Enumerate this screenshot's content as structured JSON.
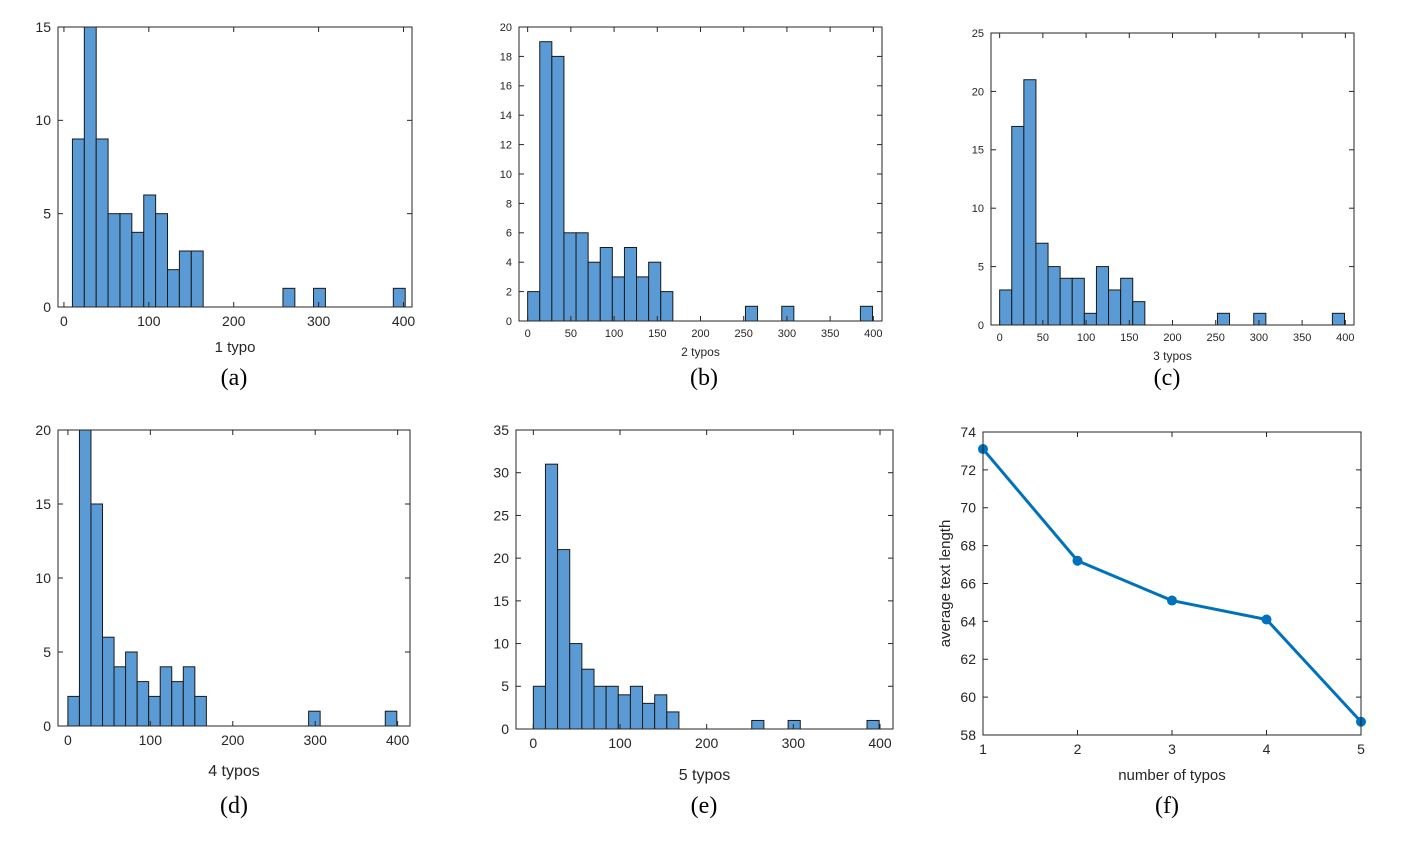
{
  "colors": {
    "bar_fill": "#5b9bd5",
    "line": "#0072bd",
    "axis": "#262626"
  },
  "chart_data": [
    {
      "id": "a",
      "type": "bar",
      "panel_label": "(a)",
      "title": "",
      "xlabel": "1 typo",
      "ylabel": "",
      "xlim": [
        -7,
        410
      ],
      "ylim": [
        0,
        15
      ],
      "xticks": [
        0,
        100,
        200,
        300,
        400
      ],
      "yticks": [
        0,
        5,
        10,
        15
      ],
      "bins": [
        {
          "x0": 10,
          "x1": 24,
          "y": 9
        },
        {
          "x0": 24,
          "x1": 38,
          "y": 15
        },
        {
          "x0": 38,
          "x1": 52,
          "y": 9
        },
        {
          "x0": 52,
          "x1": 66,
          "y": 5
        },
        {
          "x0": 66,
          "x1": 80,
          "y": 5
        },
        {
          "x0": 80,
          "x1": 94,
          "y": 4
        },
        {
          "x0": 94,
          "x1": 108,
          "y": 6
        },
        {
          "x0": 108,
          "x1": 122,
          "y": 5
        },
        {
          "x0": 122,
          "x1": 136,
          "y": 2
        },
        {
          "x0": 136,
          "x1": 150,
          "y": 3
        },
        {
          "x0": 150,
          "x1": 164,
          "y": 3
        },
        {
          "x0": 258,
          "x1": 272,
          "y": 1
        },
        {
          "x0": 294,
          "x1": 308,
          "y": 1
        },
        {
          "x0": 388,
          "x1": 402,
          "y": 1
        }
      ]
    },
    {
      "id": "b",
      "type": "bar",
      "panel_label": "(b)",
      "title": "",
      "xlabel": "2 typos",
      "ylabel": "",
      "xlim": [
        -10,
        410
      ],
      "ylim": [
        0,
        20
      ],
      "xticks": [
        0,
        50,
        100,
        150,
        200,
        250,
        300,
        350,
        400
      ],
      "yticks": [
        0,
        2,
        4,
        6,
        8,
        10,
        12,
        14,
        16,
        18,
        20
      ],
      "bins": [
        {
          "x0": 0,
          "x1": 14,
          "y": 2
        },
        {
          "x0": 14,
          "x1": 28,
          "y": 19
        },
        {
          "x0": 28,
          "x1": 42,
          "y": 18
        },
        {
          "x0": 42,
          "x1": 56,
          "y": 6
        },
        {
          "x0": 56,
          "x1": 70,
          "y": 6
        },
        {
          "x0": 70,
          "x1": 84,
          "y": 4
        },
        {
          "x0": 84,
          "x1": 98,
          "y": 5
        },
        {
          "x0": 98,
          "x1": 112,
          "y": 3
        },
        {
          "x0": 112,
          "x1": 126,
          "y": 5
        },
        {
          "x0": 126,
          "x1": 140,
          "y": 3
        },
        {
          "x0": 140,
          "x1": 154,
          "y": 4
        },
        {
          "x0": 154,
          "x1": 168,
          "y": 2
        },
        {
          "x0": 252,
          "x1": 266,
          "y": 1
        },
        {
          "x0": 294,
          "x1": 308,
          "y": 1
        },
        {
          "x0": 385,
          "x1": 399,
          "y": 1
        }
      ]
    },
    {
      "id": "c",
      "type": "bar",
      "panel_label": "(c)",
      "title": "",
      "xlabel": "3 typos",
      "ylabel": "",
      "xlim": [
        -10,
        410
      ],
      "ylim": [
        0,
        25
      ],
      "xticks": [
        0,
        50,
        100,
        150,
        200,
        250,
        300,
        350,
        400
      ],
      "yticks": [
        0,
        5,
        10,
        15,
        20,
        25
      ],
      "bins": [
        {
          "x0": 0,
          "x1": 14,
          "y": 3
        },
        {
          "x0": 14,
          "x1": 28,
          "y": 17
        },
        {
          "x0": 28,
          "x1": 42,
          "y": 21
        },
        {
          "x0": 42,
          "x1": 56,
          "y": 7
        },
        {
          "x0": 56,
          "x1": 70,
          "y": 5
        },
        {
          "x0": 70,
          "x1": 84,
          "y": 4
        },
        {
          "x0": 84,
          "x1": 98,
          "y": 4
        },
        {
          "x0": 98,
          "x1": 112,
          "y": 1
        },
        {
          "x0": 112,
          "x1": 126,
          "y": 5
        },
        {
          "x0": 126,
          "x1": 140,
          "y": 3
        },
        {
          "x0": 140,
          "x1": 154,
          "y": 4
        },
        {
          "x0": 154,
          "x1": 168,
          "y": 2
        },
        {
          "x0": 252,
          "x1": 266,
          "y": 1
        },
        {
          "x0": 294,
          "x1": 308,
          "y": 1
        },
        {
          "x0": 385,
          "x1": 399,
          "y": 1
        }
      ]
    },
    {
      "id": "d",
      "type": "bar",
      "panel_label": "(d)",
      "title": "",
      "xlabel": "4 typos",
      "ylabel": "",
      "xlim": [
        -12,
        415
      ],
      "ylim": [
        0,
        20
      ],
      "xticks": [
        0,
        100,
        200,
        300,
        400
      ],
      "yticks": [
        0,
        5,
        10,
        15,
        20
      ],
      "bins": [
        {
          "x0": 0,
          "x1": 14,
          "y": 2
        },
        {
          "x0": 14,
          "x1": 28,
          "y": 20
        },
        {
          "x0": 28,
          "x1": 42,
          "y": 15
        },
        {
          "x0": 42,
          "x1": 56,
          "y": 6
        },
        {
          "x0": 56,
          "x1": 70,
          "y": 4
        },
        {
          "x0": 70,
          "x1": 84,
          "y": 5
        },
        {
          "x0": 84,
          "x1": 98,
          "y": 3
        },
        {
          "x0": 98,
          "x1": 112,
          "y": 2
        },
        {
          "x0": 112,
          "x1": 126,
          "y": 4
        },
        {
          "x0": 126,
          "x1": 140,
          "y": 3
        },
        {
          "x0": 140,
          "x1": 154,
          "y": 4
        },
        {
          "x0": 154,
          "x1": 168,
          "y": 2
        },
        {
          "x0": 292,
          "x1": 306,
          "y": 1
        },
        {
          "x0": 385,
          "x1": 399,
          "y": 1
        }
      ]
    },
    {
      "id": "e",
      "type": "bar",
      "panel_label": "(e)",
      "title": "",
      "xlabel": "5 typos",
      "ylabel": "",
      "xlim": [
        -20,
        415
      ],
      "ylim": [
        0,
        35
      ],
      "xticks": [
        0,
        100,
        200,
        300,
        400
      ],
      "yticks": [
        0,
        5,
        10,
        15,
        20,
        25,
        30,
        35
      ],
      "bins": [
        {
          "x0": 0,
          "x1": 14,
          "y": 5
        },
        {
          "x0": 14,
          "x1": 28,
          "y": 31
        },
        {
          "x0": 28,
          "x1": 42,
          "y": 21
        },
        {
          "x0": 42,
          "x1": 56,
          "y": 10
        },
        {
          "x0": 56,
          "x1": 70,
          "y": 7
        },
        {
          "x0": 70,
          "x1": 84,
          "y": 5
        },
        {
          "x0": 84,
          "x1": 98,
          "y": 5
        },
        {
          "x0": 98,
          "x1": 112,
          "y": 4
        },
        {
          "x0": 112,
          "x1": 126,
          "y": 5
        },
        {
          "x0": 126,
          "x1": 140,
          "y": 3
        },
        {
          "x0": 140,
          "x1": 154,
          "y": 4
        },
        {
          "x0": 154,
          "x1": 168,
          "y": 2
        },
        {
          "x0": 252,
          "x1": 266,
          "y": 1
        },
        {
          "x0": 294,
          "x1": 308,
          "y": 1
        },
        {
          "x0": 385,
          "x1": 399,
          "y": 1
        }
      ]
    },
    {
      "id": "f",
      "type": "line",
      "panel_label": "(f)",
      "title": "",
      "xlabel": "number of typos",
      "ylabel": "average text length",
      "xlim": [
        1,
        5
      ],
      "ylim": [
        58,
        74
      ],
      "xticks": [
        1,
        2,
        3,
        4,
        5
      ],
      "yticks": [
        58,
        60,
        62,
        64,
        66,
        68,
        70,
        72,
        74
      ],
      "grid": false,
      "x": [
        1,
        2,
        3,
        4,
        5
      ],
      "y": [
        73.1,
        67.2,
        65.1,
        64.1,
        58.7
      ]
    }
  ]
}
